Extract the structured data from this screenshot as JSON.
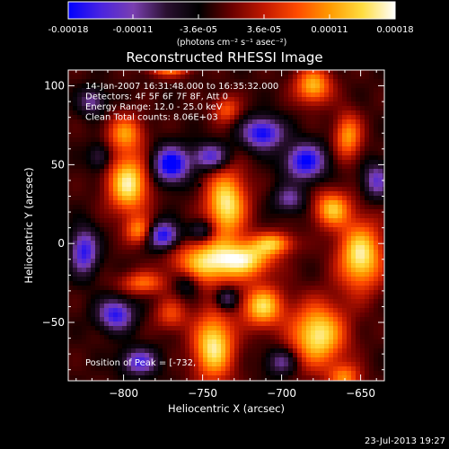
{
  "colorbar": {
    "ticks": [
      "-0.00018",
      "-0.00011",
      "-3.6e-05",
      "3.6e-05",
      "0.00011",
      "0.00018"
    ],
    "units_label": "(photons cm⁻² s⁻¹ asec⁻²)",
    "colors": [
      "#0000ff",
      "#4a24e0",
      "#7a3fb0",
      "#2a1030",
      "#000000",
      "#6a0000",
      "#c21800",
      "#ff4a00",
      "#ff9a00",
      "#ffdd40",
      "#ffffff"
    ]
  },
  "chart_data": {
    "type": "heatmap",
    "title": "Reconstructed RHESSI Image",
    "xlabel": "Heliocentric X (arcsec)",
    "ylabel": "Heliocentric Y (arcsec)",
    "xlim": [
      -835,
      -635
    ],
    "ylim": [
      -87,
      110
    ],
    "x_ticks": [
      -800,
      -750,
      -700,
      -650
    ],
    "y_ticks": [
      100,
      50,
      0,
      -50
    ],
    "x_tick_labels": [
      "−800",
      "−750",
      "−700",
      "−650"
    ],
    "y_tick_labels": [
      "100",
      "50",
      "0",
      "−50"
    ],
    "info_lines": [
      "14-Jan-2007 16:31:48.000 to 16:35:32.000",
      "Detectors: 4F 5F 6F 7F 8F, Att 0",
      "Energy Range: 12.0 - 25.0 keV",
      "Clean     Total counts: 8.06E+03"
    ],
    "peak_label": "Position of Peak = [-732,",
    "marker": {
      "x": -752,
      "y": 37
    },
    "blobs": [
      {
        "x": -797,
        "y": 38,
        "sx": 9,
        "sy": 13,
        "a": 1.0
      },
      {
        "x": -799,
        "y": 70,
        "sx": 8,
        "sy": 8,
        "a": 0.65
      },
      {
        "x": -735,
        "y": 25,
        "sx": 9,
        "sy": 15,
        "a": 1.0
      },
      {
        "x": -748,
        "y": -12,
        "sx": 14,
        "sy": 10,
        "a": 0.9
      },
      {
        "x": -722,
        "y": -10,
        "sx": 12,
        "sy": 8,
        "a": 0.85
      },
      {
        "x": -705,
        "y": 0,
        "sx": 9,
        "sy": 5,
        "a": 0.7
      },
      {
        "x": -743,
        "y": -65,
        "sx": 9,
        "sy": 15,
        "a": 1.0
      },
      {
        "x": -712,
        "y": -40,
        "sx": 9,
        "sy": 9,
        "a": 0.9
      },
      {
        "x": -677,
        "y": -58,
        "sx": 12,
        "sy": 14,
        "a": 1.0
      },
      {
        "x": -650,
        "y": -8,
        "sx": 10,
        "sy": 15,
        "a": 1.0
      },
      {
        "x": -668,
        "y": 22,
        "sx": 8,
        "sy": 8,
        "a": 0.8
      },
      {
        "x": -680,
        "y": 100,
        "sx": 8,
        "sy": 8,
        "a": 0.8
      },
      {
        "x": -658,
        "y": 68,
        "sx": 6,
        "sy": 10,
        "a": 0.7
      },
      {
        "x": -788,
        "y": -25,
        "sx": 10,
        "sy": 5,
        "a": 0.55
      },
      {
        "x": -771,
        "y": 112,
        "sx": 9,
        "sy": 4,
        "a": 0.75
      },
      {
        "x": -735,
        "y": 85,
        "sx": 6,
        "sy": 6,
        "a": 0.5
      },
      {
        "x": -790,
        "y": 8,
        "sx": 6,
        "sy": 6,
        "a": 0.65
      },
      {
        "x": -660,
        "y": -85,
        "sx": 7,
        "sy": 6,
        "a": 0.6
      },
      {
        "x": -770,
        "y": -45,
        "sx": 7,
        "sy": 7,
        "a": 0.45
      },
      {
        "x": -825,
        "y": -5,
        "sx": 6,
        "sy": 10,
        "a": -0.8
      },
      {
        "x": -770,
        "y": 50,
        "sx": 8,
        "sy": 8,
        "a": -1.0
      },
      {
        "x": -745,
        "y": 55,
        "sx": 8,
        "sy": 6,
        "a": -0.7
      },
      {
        "x": -712,
        "y": 70,
        "sx": 9,
        "sy": 7,
        "a": -0.9
      },
      {
        "x": -775,
        "y": 5,
        "sx": 7,
        "sy": 6,
        "a": -0.9
      },
      {
        "x": -750,
        "y": 8,
        "sx": 6,
        "sy": 5,
        "a": -0.5
      },
      {
        "x": -805,
        "y": -45,
        "sx": 8,
        "sy": 7,
        "a": -0.8
      },
      {
        "x": -760,
        "y": -25,
        "sx": 6,
        "sy": 6,
        "a": -0.4
      },
      {
        "x": -685,
        "y": 52,
        "sx": 9,
        "sy": 8,
        "a": -0.9
      },
      {
        "x": -695,
        "y": 28,
        "sx": 7,
        "sy": 6,
        "a": -0.5
      },
      {
        "x": -640,
        "y": 40,
        "sx": 6,
        "sy": 8,
        "a": -0.6
      },
      {
        "x": -790,
        "y": -75,
        "sx": 8,
        "sy": 6,
        "a": -0.7
      },
      {
        "x": -700,
        "y": -75,
        "sx": 7,
        "sy": 6,
        "a": -0.5
      },
      {
        "x": -735,
        "y": -35,
        "sx": 5,
        "sy": 5,
        "a": -0.55
      },
      {
        "x": -820,
        "y": 90,
        "sx": 6,
        "sy": 6,
        "a": -0.5
      },
      {
        "x": -815,
        "y": 55,
        "sx": 5,
        "sy": 6,
        "a": -0.4
      }
    ]
  },
  "footer": {
    "date": "23-Jul-2013 19:27"
  }
}
